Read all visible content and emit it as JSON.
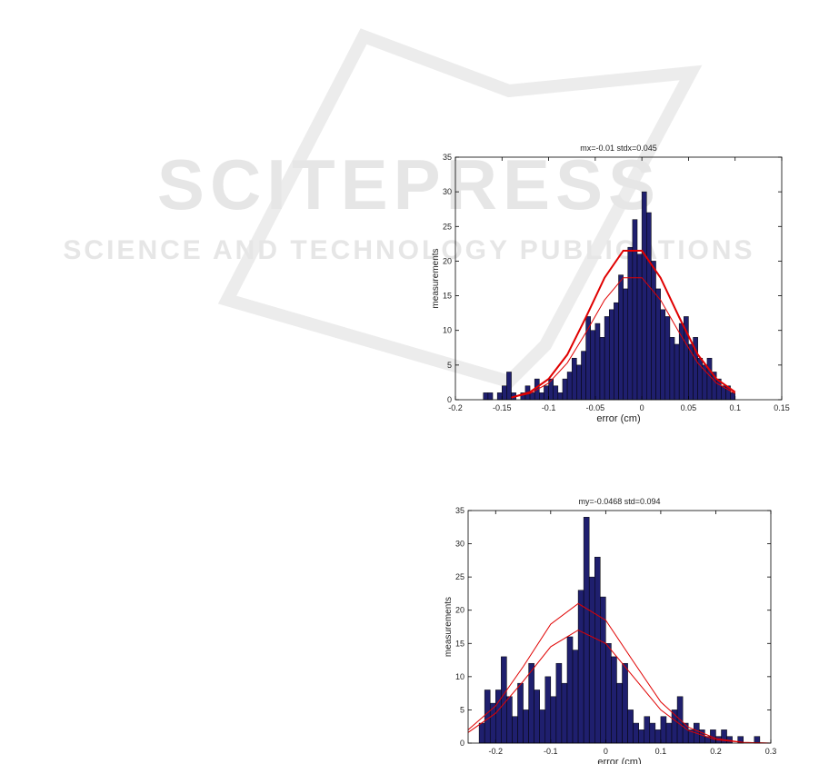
{
  "watermark": {
    "title": "SCITEPRESS",
    "subtitle": "SCIENCE AND TECHNOLOGY PUBLICATIONS"
  },
  "chart_data": [
    {
      "type": "histogram",
      "title": "mx=-0.01 stdx=0.045",
      "x_label": "error (cm)",
      "y_label": "measurements",
      "color": "#1f1f6e",
      "bins": [
        -0.17,
        -0.165,
        -0.16,
        -0.155,
        -0.15,
        -0.145,
        -0.14,
        -0.135,
        -0.13,
        -0.125,
        -0.12,
        -0.115,
        -0.11,
        -0.105,
        -0.1,
        -0.095,
        -0.09,
        -0.085,
        -0.08,
        -0.075,
        -0.07,
        -0.065,
        -0.06,
        -0.055,
        -0.05,
        -0.045,
        -0.04,
        -0.035,
        -0.03,
        -0.025,
        -0.02,
        -0.015,
        -0.01,
        -0.005,
        0,
        0.005,
        0.01,
        0.015,
        0.02,
        0.025,
        0.03,
        0.035,
        0.04,
        0.045,
        0.05,
        0.055,
        0.06,
        0.065,
        0.07,
        0.075,
        0.08,
        0.085,
        0.09,
        0.095,
        0.1
      ],
      "values": [
        1,
        1,
        0,
        1,
        2,
        4,
        1,
        0,
        1,
        2,
        1,
        3,
        1,
        2,
        3,
        2,
        1,
        3,
        4,
        6,
        5,
        7,
        12,
        10,
        11,
        9,
        12,
        13,
        14,
        18,
        16,
        22,
        26,
        21,
        30,
        27,
        20,
        16,
        13,
        12,
        9,
        8,
        11,
        12,
        8,
        9,
        6,
        5,
        6,
        4,
        3,
        2,
        2,
        1
      ],
      "lines": [
        {
          "color": "#e00000",
          "width": 2,
          "x": [
            -0.14,
            -0.12,
            -0.1,
            -0.08,
            -0.06,
            -0.04,
            -0.02,
            0,
            0.02,
            0.04,
            0.06,
            0.08,
            0.1
          ],
          "values": [
            0.3,
            1.1,
            3.0,
            6.5,
            11.9,
            17.6,
            21.5,
            21.5,
            17.6,
            11.9,
            6.5,
            3.0,
            1.1
          ]
        },
        {
          "color": "#e00000",
          "width": 1,
          "x": [
            -0.14,
            -0.12,
            -0.1,
            -0.08,
            -0.06,
            -0.04,
            -0.02,
            0,
            0.02,
            0.04,
            0.06,
            0.08,
            0.1
          ],
          "values": [
            0.3,
            0.9,
            2.4,
            5.3,
            9.7,
            14.4,
            17.6,
            17.6,
            14.4,
            9.7,
            5.3,
            2.4,
            0.9
          ]
        }
      ],
      "xlim": [
        -0.2,
        0.15
      ],
      "xticks": [
        -0.2,
        -0.15,
        -0.1,
        -0.05,
        0,
        0.05,
        0.1,
        0.15
      ],
      "ylim": [
        0,
        35
      ],
      "yticks": [
        0,
        5,
        10,
        15,
        20,
        25,
        30,
        35
      ]
    },
    {
      "type": "histogram",
      "title": "my=-0.0468  std=0.094",
      "x_label": "error (cm)",
      "y_label": "measurements",
      "color": "#1f1f6e",
      "bins": [
        -0.23,
        -0.22,
        -0.21,
        -0.2,
        -0.19,
        -0.18,
        -0.17,
        -0.16,
        -0.15,
        -0.14,
        -0.13,
        -0.12,
        -0.11,
        -0.1,
        -0.09,
        -0.08,
        -0.07,
        -0.06,
        -0.05,
        -0.04,
        -0.03,
        -0.02,
        -0.01,
        0,
        0.01,
        0.02,
        0.03,
        0.04,
        0.05,
        0.06,
        0.07,
        0.08,
        0.09,
        0.1,
        0.11,
        0.12,
        0.13,
        0.14,
        0.15,
        0.16,
        0.17,
        0.18,
        0.19,
        0.2,
        0.21,
        0.22,
        0.23,
        0.24,
        0.25,
        0.26,
        0.27,
        0.28
      ],
      "values": [
        3,
        8,
        6,
        8,
        13,
        7,
        4,
        9,
        5,
        12,
        8,
        5,
        10,
        7,
        12,
        9,
        16,
        14,
        23,
        34,
        25,
        28,
        22,
        15,
        13,
        9,
        12,
        5,
        3,
        2,
        4,
        3,
        2,
        4,
        3,
        5,
        7,
        3,
        2,
        3,
        2,
        1,
        2,
        1,
        2,
        1,
        0,
        1,
        0,
        0,
        1
      ],
      "lines": [
        {
          "color": "#e00000",
          "width": 1,
          "x": [
            -0.25,
            -0.2,
            -0.15,
            -0.1,
            -0.05,
            0,
            0.05,
            0.1,
            0.15,
            0.2,
            0.25,
            0.3
          ],
          "values": [
            2.0,
            5.6,
            11.5,
            17.9,
            21.0,
            18.5,
            12.3,
            6.2,
            2.4,
            0.7,
            0.1,
            0.0
          ]
        },
        {
          "color": "#e00000",
          "width": 1,
          "x": [
            -0.25,
            -0.2,
            -0.15,
            -0.1,
            -0.05,
            0,
            0.05,
            0.1,
            0.15,
            0.2,
            0.25,
            0.3
          ],
          "values": [
            1.6,
            4.5,
            9.3,
            14.5,
            17.0,
            15.0,
            10.0,
            5.0,
            1.9,
            0.5,
            0.1,
            0.0
          ]
        }
      ],
      "xlim": [
        -0.25,
        0.3
      ],
      "xticks": [
        -0.2,
        -0.1,
        0,
        0.1,
        0.2,
        0.3
      ],
      "ylim": [
        0,
        35
      ],
      "yticks": [
        0,
        5,
        10,
        15,
        20,
        25,
        30,
        35
      ]
    }
  ]
}
